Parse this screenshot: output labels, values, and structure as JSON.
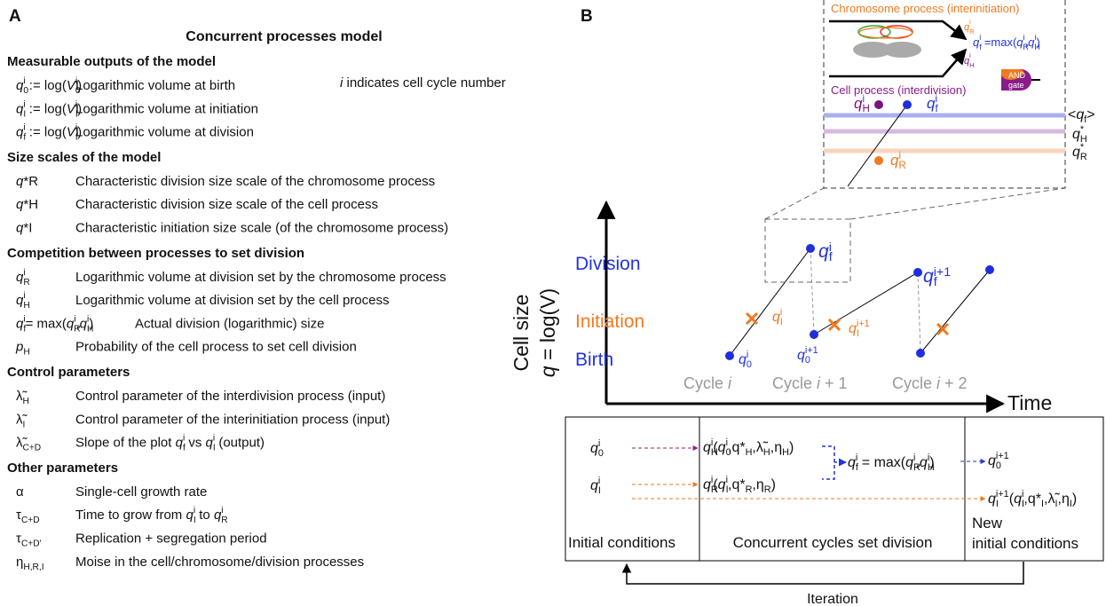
{
  "panel_a": {
    "label": "A",
    "title": "Concurrent processes model",
    "note": [
      "i",
      " indicates cell cycle number"
    ],
    "sections": [
      {
        "heading": "Measurable outputs of the model",
        "rows": [
          {
            "symbol": [
              "q",
              "0",
              "i",
              " := log(",
              "V",
              "0",
              "i",
              ")"
            ],
            "description": [
              "Logarithmic volume at birth"
            ]
          },
          {
            "symbol": [
              "q",
              "I",
              "i",
              " := log(",
              "V",
              "I",
              "i",
              ")"
            ],
            "description": [
              "Logarithmic volume at initiation"
            ]
          },
          {
            "symbol": [
              "q",
              "f",
              "i",
              " := log(",
              "V",
              "f",
              "i",
              ")"
            ],
            "description": [
              "Logarithmic volume at division"
            ]
          }
        ]
      },
      {
        "heading": "Size scales of the model",
        "rows": [
          {
            "symbol": [
              "q",
              "*",
              "R"
            ],
            "description": [
              "Characteristic division size scale of the chromosome process"
            ]
          },
          {
            "symbol": [
              "q",
              "*",
              "H"
            ],
            "description": [
              "Characteristic division size scale of the cell process"
            ]
          },
          {
            "symbol": [
              "q",
              "*",
              "I"
            ],
            "description": [
              "Characteristic initiation size scale (of the chromosome process)"
            ]
          }
        ]
      },
      {
        "heading": "Competition between processes to set division",
        "rows": [
          {
            "symbol": [
              "q",
              "R",
              "i"
            ],
            "description": [
              "Logarithmic volume at division set by the chromosome process"
            ]
          },
          {
            "symbol": [
              "q",
              "H",
              "i"
            ],
            "description": [
              "Logarithmic volume at division set by the cell process"
            ]
          },
          {
            "symbol": [
              "q",
              "f",
              "i",
              "= max(",
              "q",
              "R",
              "i",
              ",",
              "q",
              "H",
              "i",
              ")"
            ],
            "description": [
              "Actual division (logarithmic) size"
            ]
          },
          {
            "symbol": [
              "p",
              "H"
            ],
            "description": [
              "Probability of the cell process to set cell division"
            ]
          }
        ]
      },
      {
        "heading": "Control parameters",
        "rows": [
          {
            "symbol": [
              "λ̃",
              "H"
            ],
            "description": [
              "Control parameter of the interdivision process (input)"
            ]
          },
          {
            "symbol": [
              "λ̃",
              "I"
            ],
            "description": [
              "Control parameter of the interinitiation process (input)"
            ]
          },
          {
            "symbol": [
              "λ̃",
              "C+D"
            ],
            "description": [
              "Slope of the plot ",
              "q",
              "f",
              "i",
              " vs ",
              "q",
              "I",
              "i",
              " (output)"
            ]
          }
        ]
      },
      {
        "heading": "Other parameters",
        "rows": [
          {
            "symbol": [
              "α"
            ],
            "description": [
              "Single-cell growth rate"
            ]
          },
          {
            "symbol": [
              "τ",
              "C+D"
            ],
            "description": [
              "Time to grow from ",
              "q",
              "I",
              "i",
              " to ",
              "q",
              "R",
              "i"
            ]
          },
          {
            "symbol": [
              "τ",
              "C+D'"
            ],
            "description": [
              "Replication + segregation period"
            ]
          },
          {
            "symbol": [
              "η",
              "H,R,I"
            ],
            "description": [
              "Moise in the cell/chromosome/division processes"
            ]
          }
        ]
      }
    ]
  },
  "panel_b": {
    "label": "B",
    "y_axis_label": "Cell size",
    "y_axis_formula": [
      "q",
      " = log(V)"
    ],
    "x_axis_label": "Time",
    "levels": [
      "Division",
      "Initiation",
      "Birth"
    ],
    "cycles": [
      [
        "Cycle ",
        "i"
      ],
      [
        "Cycle ",
        "i",
        " + 1"
      ],
      [
        "Cycle ",
        "i",
        " + 2"
      ]
    ],
    "point_labels": [
      [
        "q",
        "f",
        "i"
      ],
      [
        "q",
        "I",
        "i"
      ],
      [
        "q",
        "0",
        "i"
      ],
      [
        "q",
        "0",
        "i+1"
      ],
      [
        "q",
        "I",
        "i+1"
      ],
      [
        "q",
        "f",
        "i+1"
      ]
    ],
    "inset": {
      "chromosome_process": "Chromosome process (interinitiation)",
      "cell_process": "Cell process (interdivision)",
      "gate": [
        "AND",
        "gate"
      ],
      "formula": [
        "q",
        "f",
        "i",
        " =max(",
        "q",
        "R",
        "i",
        ",",
        "q",
        "H",
        "i",
        ")"
      ],
      "inputs": [
        [
          "q",
          "R",
          "i"
        ],
        [
          "q",
          "H",
          "i"
        ]
      ],
      "line_labels": [
        [
          "<",
          "q",
          "f",
          ">"
        ],
        [
          "q",
          "H",
          "*"
        ],
        [
          "q",
          "R",
          "*"
        ]
      ],
      "point_labels": [
        [
          "q",
          "H",
          "i"
        ],
        [
          "q",
          "f",
          "i"
        ],
        [
          "q",
          "R",
          "i"
        ]
      ]
    },
    "flow": {
      "inputs": [
        [
          "q",
          "0",
          "i"
        ],
        [
          "q",
          "I",
          "i"
        ]
      ],
      "h_formula": [
        "q",
        "H",
        "i",
        "(",
        "q",
        "0",
        "i",
        ",",
        "q*",
        "H",
        ",",
        "λ̃",
        "H",
        ",",
        "η",
        "H",
        ")"
      ],
      "r_formula": [
        "q",
        "R",
        "i",
        "(",
        "q",
        "I",
        "i",
        ",",
        "q*",
        "R",
        ",",
        "η",
        "R",
        ")"
      ],
      "f_formula": [
        "q",
        "f",
        "i",
        " = max(",
        "q",
        "R",
        "i",
        ",",
        "q",
        "H",
        "i",
        ")"
      ],
      "out_birth": [
        "q",
        "0",
        "i+1"
      ],
      "out_init": [
        "q",
        "I",
        "i+1",
        "(",
        "q",
        "I",
        "i",
        ",",
        "q*",
        "I",
        ",",
        "λ̃",
        "I",
        ",",
        "η",
        "I",
        ")"
      ],
      "columns": [
        "Initial conditions",
        "Concurrent cycles set division",
        [
          "New",
          "initial conditions"
        ]
      ],
      "loop": "Iteration"
    }
  }
}
